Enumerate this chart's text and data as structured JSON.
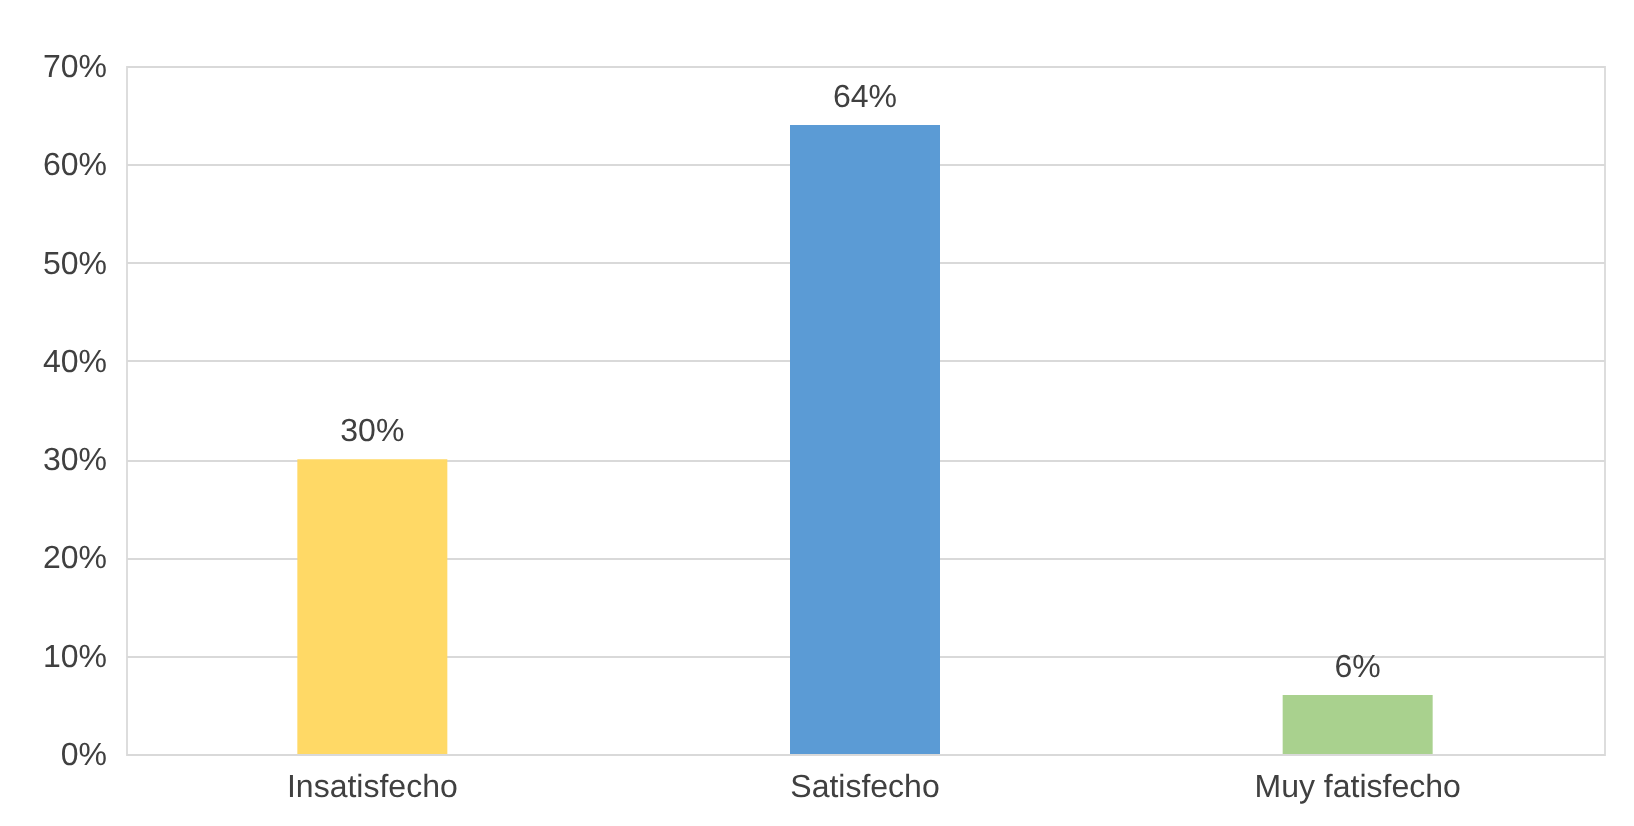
{
  "chart_data": {
    "type": "bar",
    "categories": [
      "Insatisfecho",
      "Satisfecho",
      "Muy fatisfecho"
    ],
    "values": [
      30,
      64,
      6
    ],
    "colors": [
      "#ffd966",
      "#5b9bd5",
      "#a9d18e"
    ],
    "value_labels": [
      "30%",
      "64%",
      "6%"
    ],
    "ylim": [
      0,
      70
    ],
    "yticks": [
      {
        "value": 0,
        "label": "0%"
      },
      {
        "value": 10,
        "label": "10%"
      },
      {
        "value": 20,
        "label": "20%"
      },
      {
        "value": 30,
        "label": "30%"
      },
      {
        "value": 40,
        "label": "40%"
      },
      {
        "value": 50,
        "label": "50%"
      },
      {
        "value": 60,
        "label": "60%"
      },
      {
        "value": 70,
        "label": "70%"
      }
    ],
    "grid": "y"
  }
}
